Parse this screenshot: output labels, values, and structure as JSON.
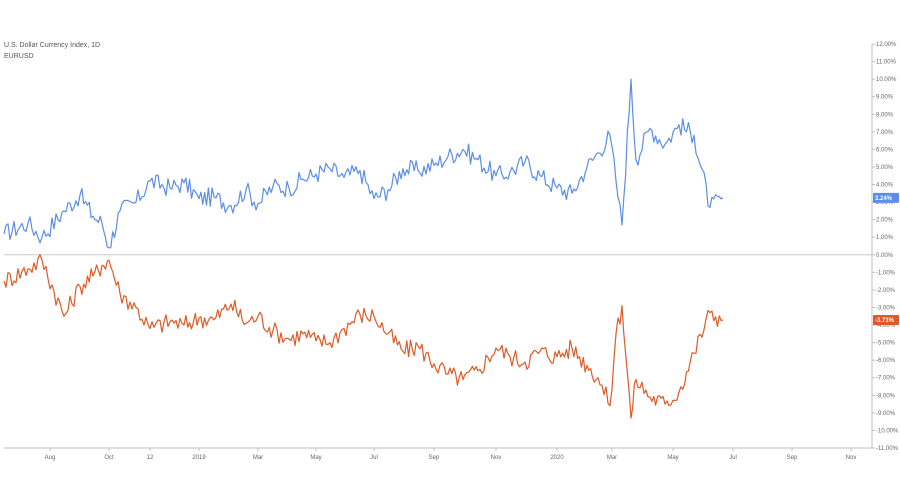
{
  "legend": {
    "main_title": "U.S. Dollar Currency Index, 1D",
    "compare_symbol": "EURUSD"
  },
  "chart_data": {
    "type": "line",
    "title": "U.S. Dollar Currency Index, 1D",
    "xlabel": "",
    "ylabel": "",
    "ylim": [
      -11,
      12
    ],
    "x_tick_labels": [
      "Aug",
      "Oct",
      "12",
      "2019",
      "Mar",
      "May",
      "Jul",
      "Sep",
      "Nov",
      "2020",
      "Mar",
      "May",
      "Jul",
      "Sep",
      "Nov"
    ],
    "y_tick_labels": [
      "12.00%",
      "11.00%",
      "10.00%",
      "9.00%",
      "8.00%",
      "7.00%",
      "6.00%",
      "5.00%",
      "4.00%",
      "3.00%",
      "2.00%",
      "1.00%",
      "0.00%",
      "-1.00%",
      "-2.00%",
      "-3.00%",
      "-4.00%",
      "-5.00%",
      "-6.00%",
      "-7.00%",
      "-8.00%",
      "-9.00%",
      "-10.00%",
      "-11.00%"
    ],
    "x": [
      "Jun 18",
      "Jul 1",
      "Jul 15",
      "Aug 1",
      "Aug 15",
      "Sep 1",
      "Sep 15",
      "Oct 1",
      "Oct 15",
      "Nov 1",
      "Nov 15",
      "Dec 1",
      "Dec 15",
      "Jan 1",
      "Jan 15",
      "Feb 1",
      "Feb 15",
      "Mar 1",
      "Mar 15",
      "Apr 1",
      "Apr 15",
      "May 1",
      "May 15",
      "Jun 1",
      "Jun 15",
      "Jul 1",
      "Jul 15",
      "Aug 1",
      "Aug 15",
      "Sep 1",
      "Sep 15",
      "Oct 1",
      "Oct 15",
      "Nov 1",
      "Nov 15",
      "Dec 1",
      "Dec 15",
      "Jan 1",
      "Jan 15",
      "Feb 1",
      "Feb 15",
      "Mar 1",
      "Mar 9",
      "Mar 19",
      "Mar 27",
      "Apr 1",
      "Apr 15",
      "May 1",
      "May 15",
      "Jun 1",
      "Jun 15",
      "Jun 26"
    ],
    "series": [
      {
        "name": "U.S. Dollar Currency Index",
        "color": "#5b8ee6",
        "last_label": "3.24%",
        "values": [
          1.2,
          1.8,
          1.0,
          2.5,
          3.4,
          2.2,
          1.8,
          0.4,
          2.5,
          3.0,
          4.2,
          3.8,
          4.1,
          3.2,
          3.3,
          2.8,
          3.7,
          2.9,
          3.9,
          3.8,
          4.3,
          4.6,
          4.9,
          4.4,
          4.8,
          3.2,
          3.7,
          4.9,
          4.8,
          5.1,
          5.6,
          6.0,
          5.4,
          4.5,
          4.7,
          5.3,
          4.5,
          3.8,
          3.5,
          5.0,
          5.8,
          6.8,
          4.2,
          1.7,
          10.0,
          5.4,
          7.2,
          6.3,
          7.4,
          6.8,
          2.7,
          3.24
        ]
      },
      {
        "name": "EURUSD",
        "color": "#de5a26",
        "last_label": "-3.71%",
        "values": [
          -1.5,
          -0.8,
          -0.3,
          -3.5,
          -1.8,
          -1.2,
          -0.6,
          -0.3,
          -2.2,
          -3.0,
          -4.2,
          -3.8,
          -4.0,
          -3.6,
          -3.7,
          -2.8,
          -3.9,
          -3.5,
          -4.3,
          -4.8,
          -4.5,
          -4.9,
          -5.0,
          -4.2,
          -3.4,
          -3.5,
          -4.5,
          -5.5,
          -5.2,
          -6.2,
          -6.8,
          -7.1,
          -6.6,
          -5.3,
          -5.8,
          -6.1,
          -5.5,
          -5.8,
          -5.3,
          -6.3,
          -7.0,
          -8.6,
          -4.5,
          -2.9,
          -9.3,
          -7.1,
          -8.1,
          -8.5,
          -7.8,
          -5.6,
          -3.3,
          -3.71
        ]
      }
    ]
  }
}
